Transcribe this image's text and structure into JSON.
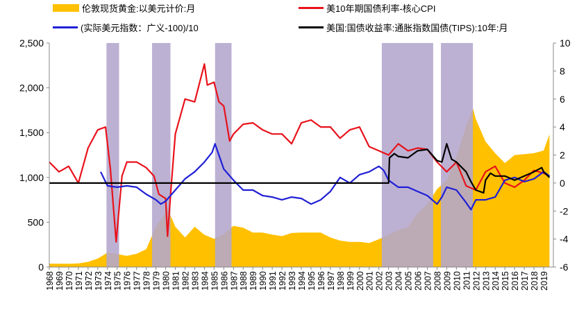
{
  "chart_data": {
    "type": "line",
    "title": "",
    "colors": {
      "gold": "#FFC000",
      "rate": "#E8121B",
      "dollar": "#1F1FD6",
      "tips": "#000000",
      "recession": "#B3A6CD"
    },
    "legend": [
      {
        "key": "gold",
        "label": "伦敦现货黄金:以美元计价:月",
        "kind": "area"
      },
      {
        "key": "rate",
        "label": "美10年期国债利率-核心CPI",
        "kind": "line"
      },
      {
        "key": "dollar",
        "label": "(实际美元指数：广义-100)/10",
        "kind": "line"
      },
      {
        "key": "tips",
        "label": "美国:国债收益率:通胀指数国债(TIPS):10年:月",
        "kind": "line"
      }
    ],
    "x_ticks": [
      "1968",
      "1969",
      "1970",
      "1971",
      "1972",
      "1973",
      "1974",
      "1975",
      "1976",
      "1977",
      "1978",
      "1979",
      "1980",
      "1981",
      "1982",
      "1983",
      "1984",
      "1985",
      "1986",
      "1987",
      "1988",
      "1989",
      "1990",
      "1991",
      "1992",
      "1993",
      "1994",
      "1995",
      "1996",
      "1997",
      "1998",
      "1999",
      "2000",
      "2001",
      "2002",
      "2003",
      "2004",
      "2005",
      "2006",
      "2007",
      "2008",
      "2009",
      "2010",
      "2011",
      "2012",
      "2013",
      "2014",
      "2015",
      "2016",
      "2017",
      "2018",
      "2019"
    ],
    "y_left": {
      "min": 0,
      "max": 2500,
      "ticks": [
        "0",
        "500",
        "1,000",
        "1,500",
        "2,000",
        "2,500"
      ]
    },
    "y_right": {
      "min": -6,
      "max": 10,
      "ticks": [
        "-6",
        "-4",
        "-2",
        "0",
        "2",
        "4",
        "6",
        "8",
        "10"
      ]
    },
    "xlim": [
      1968,
      2020
    ],
    "recessions": [
      [
        1973.9,
        1975.2
      ],
      [
        1978.6,
        1980.5
      ],
      [
        1985.1,
        1986.8
      ],
      [
        2002.3,
        2007.6
      ],
      [
        2008.4,
        2011.7
      ]
    ],
    "series": [
      {
        "name": "伦敦现货黄金:以美元计价:月",
        "axis": "left",
        "points": [
          [
            1968,
            38
          ],
          [
            1970,
            36
          ],
          [
            1971,
            40
          ],
          [
            1972,
            58
          ],
          [
            1973,
            95
          ],
          [
            1974,
            160
          ],
          [
            1975,
            145
          ],
          [
            1976,
            125
          ],
          [
            1977,
            148
          ],
          [
            1978,
            200
          ],
          [
            1979,
            450
          ],
          [
            1980,
            600
          ],
          [
            1980.1,
            680
          ],
          [
            1981,
            450
          ],
          [
            1982,
            330
          ],
          [
            1983,
            450
          ],
          [
            1984,
            360
          ],
          [
            1985,
            315
          ],
          [
            1986,
            370
          ],
          [
            1987,
            460
          ],
          [
            1988,
            440
          ],
          [
            1989,
            385
          ],
          [
            1990,
            385
          ],
          [
            1991,
            362
          ],
          [
            1992,
            345
          ],
          [
            1993,
            380
          ],
          [
            1994,
            385
          ],
          [
            1995,
            385
          ],
          [
            1996,
            385
          ],
          [
            1997,
            330
          ],
          [
            1998,
            295
          ],
          [
            1999,
            280
          ],
          [
            2000,
            280
          ],
          [
            2001,
            268
          ],
          [
            2002,
            310
          ],
          [
            2003,
            360
          ],
          [
            2004,
            410
          ],
          [
            2005,
            445
          ],
          [
            2006,
            600
          ],
          [
            2007,
            700
          ],
          [
            2008,
            870
          ],
          [
            2009,
            970
          ],
          [
            2010,
            1230
          ],
          [
            2011,
            1570
          ],
          [
            2011.7,
            1770
          ],
          [
            2012,
            1650
          ],
          [
            2013,
            1400
          ],
          [
            2014,
            1270
          ],
          [
            2015,
            1160
          ],
          [
            2016,
            1250
          ],
          [
            2017,
            1260
          ],
          [
            2018,
            1270
          ],
          [
            2019,
            1300
          ],
          [
            2019.6,
            1480
          ]
        ]
      },
      {
        "name": "美10年期国债利率-核心CPI",
        "axis": "right",
        "points": [
          [
            1968,
            1.5
          ],
          [
            1969,
            0.8
          ],
          [
            1970,
            1.2
          ],
          [
            1971,
            0
          ],
          [
            1972,
            2.5
          ],
          [
            1973,
            3.8
          ],
          [
            1973.8,
            4
          ],
          [
            1974.3,
            1.0
          ],
          [
            1974.9,
            -4.2
          ],
          [
            1975.5,
            0.5
          ],
          [
            1976,
            1.5
          ],
          [
            1977,
            1.5
          ],
          [
            1978,
            1.1
          ],
          [
            1978.8,
            0.5
          ],
          [
            1979.3,
            -0.8
          ],
          [
            1980.0,
            -1.1
          ],
          [
            1980.2,
            -3.8
          ],
          [
            1980.6,
            0.0
          ],
          [
            1981,
            3.5
          ],
          [
            1982,
            6.0
          ],
          [
            1983,
            5.8
          ],
          [
            1984,
            8.5
          ],
          [
            1984.3,
            7.0
          ],
          [
            1985,
            7.2
          ],
          [
            1985.5,
            5.8
          ],
          [
            1986,
            5.5
          ],
          [
            1986.6,
            3.0
          ],
          [
            1987,
            3.5
          ],
          [
            1988,
            4.2
          ],
          [
            1989,
            4.3
          ],
          [
            1990,
            3.8
          ],
          [
            1991,
            3.5
          ],
          [
            1992,
            3.5
          ],
          [
            1993,
            2.8
          ],
          [
            1994,
            4.3
          ],
          [
            1995,
            4.5
          ],
          [
            1996,
            4.0
          ],
          [
            1997,
            4.0
          ],
          [
            1998,
            3.2
          ],
          [
            1999,
            3.8
          ],
          [
            2000,
            4.0
          ],
          [
            2001,
            2.6
          ],
          [
            2002,
            2.3
          ],
          [
            2003,
            2.0
          ],
          [
            2004,
            2.8
          ],
          [
            2005,
            2.3
          ],
          [
            2006,
            2.5
          ],
          [
            2007,
            2.4
          ],
          [
            2008,
            1.5
          ],
          [
            2009,
            0.8
          ],
          [
            2010,
            1.5
          ],
          [
            2011,
            -0.2
          ],
          [
            2012,
            -0.5
          ],
          [
            2013,
            0.8
          ],
          [
            2014,
            1.2
          ],
          [
            2015,
            0.0
          ],
          [
            2016,
            -0.3
          ],
          [
            2017,
            0.2
          ],
          [
            2018,
            0.9
          ],
          [
            2019,
            0.7
          ],
          [
            2019.6,
            0.5
          ]
        ]
      },
      {
        "name": "(实际美元指数：广义-100)/10",
        "axis": "right",
        "points": [
          [
            1973.3,
            0.8
          ],
          [
            1974,
            -0.2
          ],
          [
            1975,
            -0.3
          ],
          [
            1976,
            -0.2
          ],
          [
            1977,
            -0.3
          ],
          [
            1978,
            -0.8
          ],
          [
            1979,
            -1.2
          ],
          [
            1979.5,
            -1.5
          ],
          [
            1980,
            -1.3
          ],
          [
            1981,
            -0.5
          ],
          [
            1982,
            0.3
          ],
          [
            1983,
            0.8
          ],
          [
            1984,
            1.5
          ],
          [
            1984.8,
            2.2
          ],
          [
            1985.1,
            2.8
          ],
          [
            1985.5,
            2.0
          ],
          [
            1986,
            1.0
          ],
          [
            1987,
            0.2
          ],
          [
            1988,
            -0.5
          ],
          [
            1989,
            -0.5
          ],
          [
            1990,
            -0.9
          ],
          [
            1991,
            -1.0
          ],
          [
            1992,
            -1.2
          ],
          [
            1993,
            -1.0
          ],
          [
            1994,
            -1.1
          ],
          [
            1995,
            -1.5
          ],
          [
            1996,
            -1.2
          ],
          [
            1997,
            -0.6
          ],
          [
            1998,
            0.4
          ],
          [
            1999,
            0.0
          ],
          [
            2000,
            0.6
          ],
          [
            2001,
            0.8
          ],
          [
            2002,
            1.2
          ],
          [
            2002.5,
            0.9
          ],
          [
            2003,
            0.2
          ],
          [
            2004,
            -0.3
          ],
          [
            2005,
            -0.3
          ],
          [
            2006,
            -0.6
          ],
          [
            2007,
            -0.9
          ],
          [
            2008,
            -1.5
          ],
          [
            2008.5,
            -1.0
          ],
          [
            2009,
            -0.3
          ],
          [
            2010,
            -0.5
          ],
          [
            2011,
            -1.4
          ],
          [
            2011.5,
            -1.9
          ],
          [
            2012,
            -1.2
          ],
          [
            2013,
            -1.2
          ],
          [
            2014,
            -1.0
          ],
          [
            2015,
            0.2
          ],
          [
            2016,
            0.4
          ],
          [
            2017,
            0.1
          ],
          [
            2018,
            0.3
          ],
          [
            2019,
            0.8
          ],
          [
            2019.6,
            0.5
          ]
        ]
      },
      {
        "name": "美国:国债收益率:通胀指数国债(TIPS):10年:月",
        "axis": "right",
        "points": [
          [
            1968,
            0
          ],
          [
            2003,
            0
          ],
          [
            2003.1,
            1.8
          ],
          [
            2003.6,
            2.1
          ],
          [
            2004,
            1.9
          ],
          [
            2005,
            1.8
          ],
          [
            2006,
            2.3
          ],
          [
            2007,
            2.4
          ],
          [
            2008,
            1.6
          ],
          [
            2008.5,
            1.5
          ],
          [
            2009,
            2.8
          ],
          [
            2009.5,
            1.7
          ],
          [
            2010,
            1.5
          ],
          [
            2011,
            0.8
          ],
          [
            2011.5,
            0.1
          ],
          [
            2012,
            -0.5
          ],
          [
            2012.8,
            -0.7
          ],
          [
            2013,
            0.2
          ],
          [
            2013.5,
            0.7
          ],
          [
            2014,
            0.5
          ],
          [
            2015,
            0.5
          ],
          [
            2016,
            0.2
          ],
          [
            2017,
            0.5
          ],
          [
            2018,
            0.8
          ],
          [
            2018.8,
            1.1
          ],
          [
            2019,
            0.8
          ],
          [
            2019.6,
            0.4
          ]
        ]
      }
    ]
  }
}
